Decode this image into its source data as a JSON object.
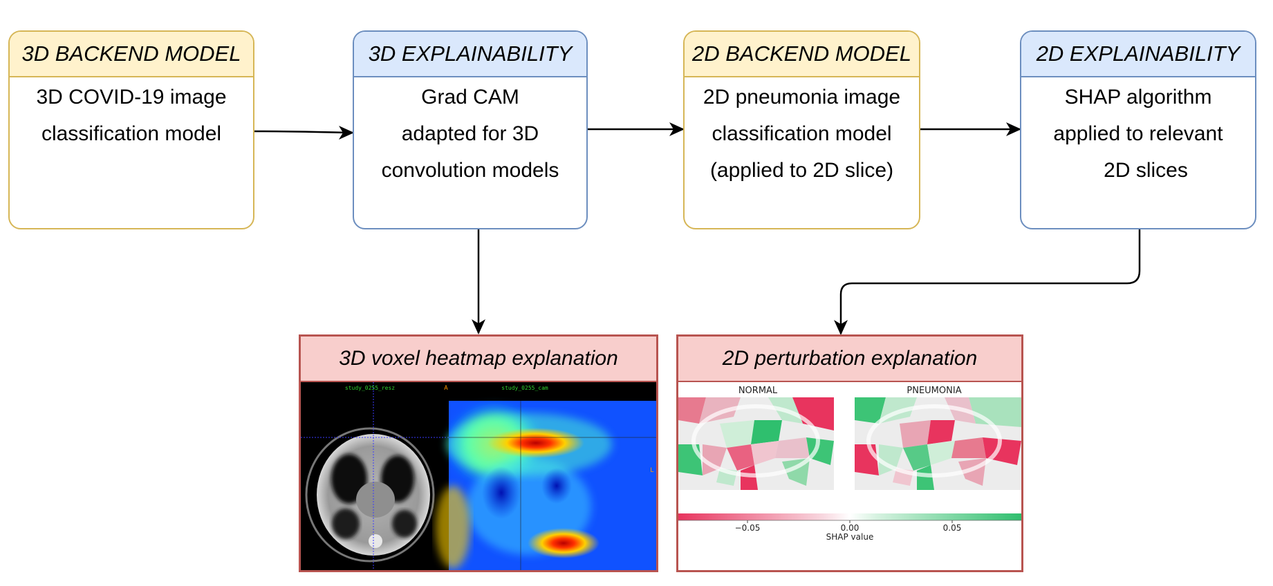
{
  "nodes": {
    "backend3d": {
      "title": "3D BACKEND MODEL",
      "lines": [
        "3D COVID-19 image",
        "classification model"
      ]
    },
    "explain3d": {
      "title": "3D EXPLAINABILITY",
      "lines": [
        "Grad CAM",
        "adapted for 3D",
        "convolution models"
      ]
    },
    "backend2d": {
      "title": "2D BACKEND MODEL",
      "lines": [
        "2D pneumonia image",
        "classification model",
        "(applied to 2D slice)"
      ]
    },
    "explain2d": {
      "title": "2D EXPLAINABILITY",
      "lines": [
        "SHAP algorithm",
        "applied to relevant",
        "2D slices"
      ]
    }
  },
  "panels": {
    "voxel": {
      "title": "3D voxel heatmap explanation",
      "left_caption": "study_0255_resz",
      "right_caption": "study_0255_cam",
      "marker": "A",
      "side_marker": "L"
    },
    "perturbation": {
      "title": "2D perturbation explanation",
      "label_normal": "NORMAL",
      "label_pneumonia": "PNEUMONIA",
      "axis_label": "SHAP value",
      "ticks": [
        "−0.05",
        "0.00",
        "0.05"
      ]
    }
  },
  "colors": {
    "yellow_border": "#d6b656",
    "yellow_fill": "#fff2cc",
    "blue_border": "#6c8ebf",
    "blue_fill": "#dae8fc",
    "red_border": "#b85450",
    "red_fill": "#f8cecc",
    "shap_positive": "#2fbf6e",
    "shap_negative": "#e8345e"
  }
}
